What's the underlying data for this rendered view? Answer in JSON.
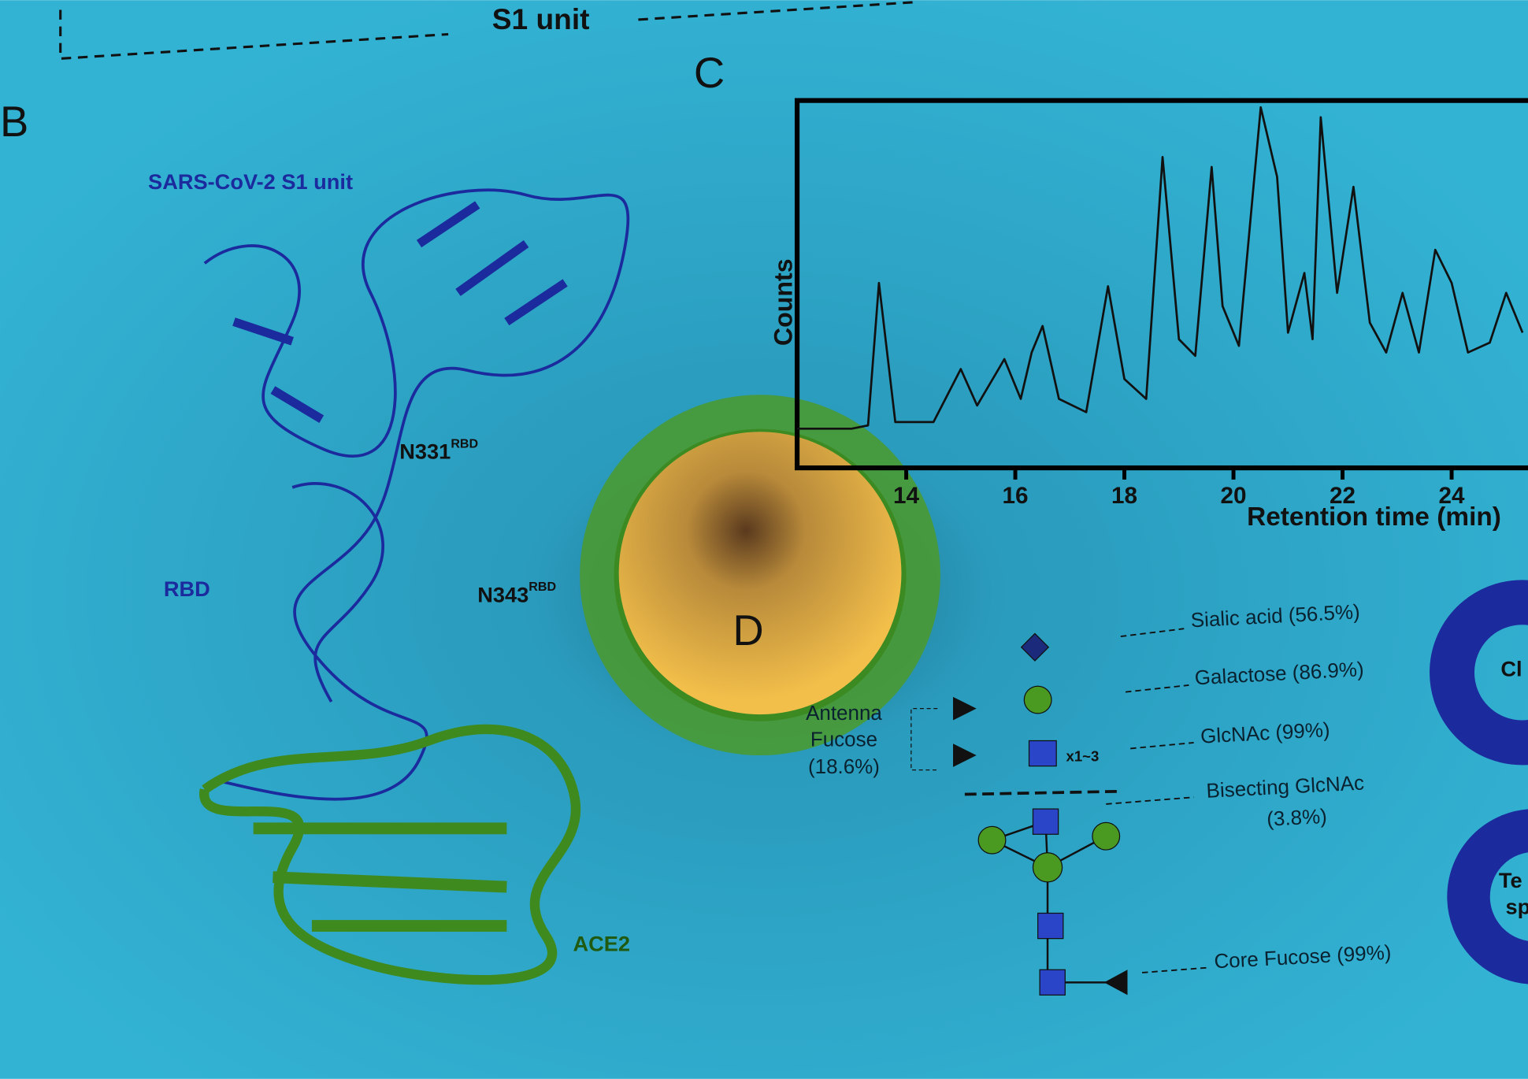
{
  "labels": {
    "s1_unit": "S1 unit",
    "panel_b": "B",
    "panel_c": "C",
    "panel_d": "D",
    "sars_s1": "SARS-CoV-2 S1 unit",
    "n331": "N331",
    "n331_sup": "RBD",
    "n343": "N343",
    "n343_sup": "RBD",
    "rbd": "RBD",
    "ace2": "ACE2"
  },
  "glycan": {
    "sialic": "Sialic acid (56.5%)",
    "galactose": "Galactose (86.9%)",
    "glcnac": "GlcNAc (99%)",
    "bisecting": "Bisecting GlcNAc",
    "bisecting_pct": "(3.8%)",
    "core_fucose": "Core Fucose (99%)",
    "antenna": "Antenna",
    "fucose": "Fucose",
    "antenna_pct": "(18.6%)",
    "repeat": "x1~3"
  },
  "donuts": {
    "top": "Cl",
    "bottom_1": "Te",
    "bottom_2": "sp"
  },
  "chart_data": {
    "type": "line",
    "x_label": "Retention time (min)",
    "y_label": "Counts",
    "x": [
      12.0,
      13.0,
      13.3,
      13.5,
      13.8,
      14.5,
      15.0,
      15.3,
      15.8,
      16.1,
      16.3,
      16.5,
      16.8,
      17.3,
      17.7,
      18.0,
      18.4,
      18.7,
      19.0,
      19.3,
      19.6,
      19.8,
      20.1,
      20.5,
      20.8,
      21.0,
      21.3,
      21.45,
      21.6,
      21.9,
      22.2,
      22.5,
      22.8,
      23.1,
      23.4,
      23.7,
      24.0,
      24.3,
      24.7,
      25.0,
      25.3
    ],
    "values": [
      3,
      3,
      4,
      47,
      5,
      5,
      21,
      10,
      24,
      12,
      26,
      34,
      12,
      8,
      46,
      18,
      12,
      85,
      30,
      25,
      82,
      40,
      28,
      100,
      79,
      32,
      50,
      30,
      97,
      44,
      76,
      35,
      26,
      44,
      26,
      57,
      47,
      26,
      29,
      44,
      32
    ],
    "xlim": [
      12,
      25.4
    ],
    "ylim": [
      0,
      100
    ],
    "xticks": [
      14,
      16,
      18,
      20,
      22,
      24
    ],
    "color": "#111111"
  }
}
